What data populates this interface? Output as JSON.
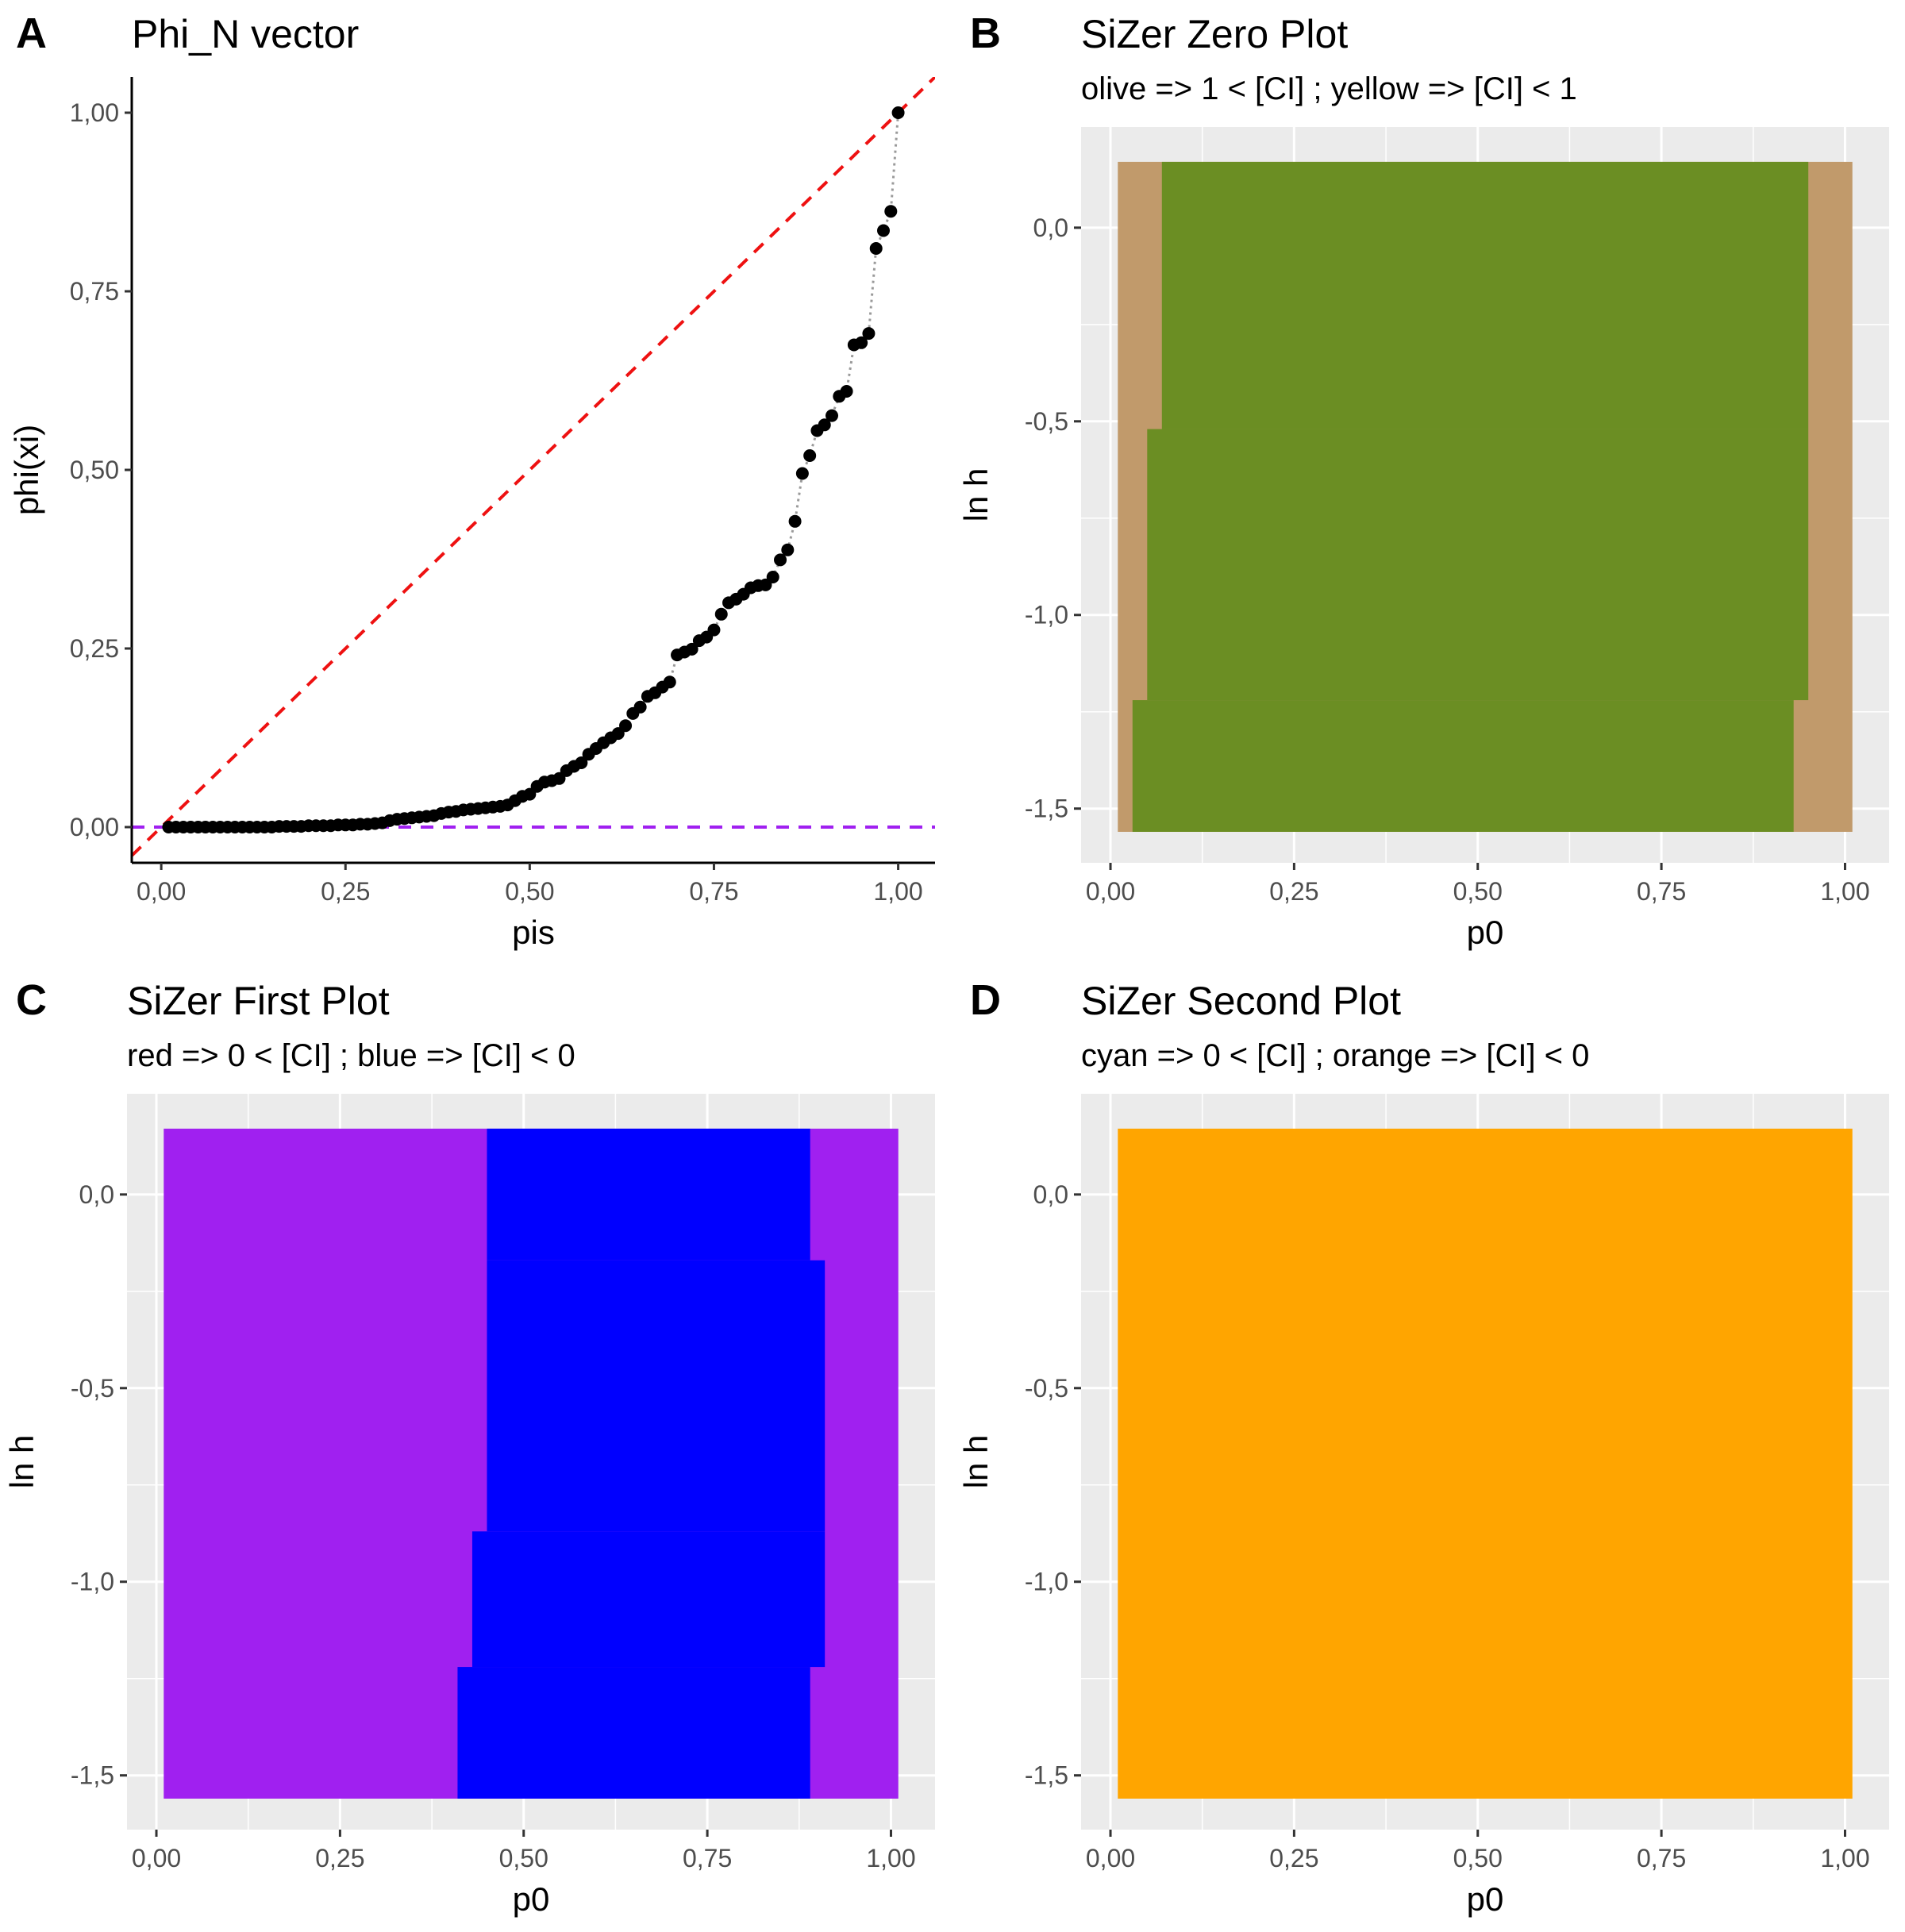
{
  "chart_data": [
    {
      "panel": "A",
      "type": "scatter",
      "title": "Phi_N vector",
      "xlabel": "pis",
      "ylabel": "phi(xi)",
      "xlim": [
        -0.04,
        1.05
      ],
      "ylim": [
        -0.05,
        1.05
      ],
      "x_ticks": [
        "0,00",
        "0,25",
        "0,50",
        "0,75",
        "1,00"
      ],
      "y_ticks": [
        "0,00",
        "0,25",
        "0,50",
        "0,75",
        "1,00"
      ],
      "grid": false,
      "reference_lines": [
        {
          "kind": "identity",
          "color": "#ee1111",
          "style": "dashed"
        },
        {
          "kind": "horizontal",
          "y": 0,
          "color": "#a020f0",
          "style": "dashed"
        }
      ],
      "series": [
        {
          "x": [
            0.01,
            0.02,
            0.03,
            0.04,
            0.05,
            0.06,
            0.07,
            0.08,
            0.09,
            0.1,
            0.11,
            0.12,
            0.13,
            0.14,
            0.15,
            0.16,
            0.17,
            0.18,
            0.19,
            0.2,
            0.21,
            0.22,
            0.23,
            0.24,
            0.25,
            0.26,
            0.27,
            0.28,
            0.29,
            0.3,
            0.31,
            0.32,
            0.33,
            0.34,
            0.35,
            0.36,
            0.37,
            0.38,
            0.39,
            0.4,
            0.41,
            0.42,
            0.43,
            0.44,
            0.45,
            0.46,
            0.47,
            0.48,
            0.49,
            0.5,
            0.51,
            0.52,
            0.53,
            0.54,
            0.55,
            0.56,
            0.57,
            0.58,
            0.59,
            0.6,
            0.61,
            0.62,
            0.63,
            0.64,
            0.65,
            0.66,
            0.67,
            0.68,
            0.69,
            0.7,
            0.71,
            0.72,
            0.73,
            0.74,
            0.75,
            0.76,
            0.77,
            0.78,
            0.79,
            0.8,
            0.81,
            0.82,
            0.83,
            0.84,
            0.85,
            0.86,
            0.87,
            0.88,
            0.89,
            0.9,
            0.91,
            0.92,
            0.93,
            0.94,
            0.95,
            0.96,
            0.97,
            0.98,
            0.99,
            1.0
          ],
          "y": [
            0.0,
            0.0,
            0.0,
            0.0,
            0.0,
            0.0,
            0.0,
            0.0,
            0.0,
            0.0,
            0.0,
            0.0,
            0.0,
            0.0,
            0.0,
            0.001,
            0.001,
            0.001,
            0.001,
            0.002,
            0.002,
            0.002,
            0.002,
            0.003,
            0.003,
            0.003,
            0.004,
            0.004,
            0.005,
            0.006,
            0.009,
            0.011,
            0.012,
            0.013,
            0.014,
            0.015,
            0.016,
            0.019,
            0.021,
            0.022,
            0.024,
            0.025,
            0.026,
            0.027,
            0.028,
            0.029,
            0.031,
            0.037,
            0.043,
            0.046,
            0.057,
            0.063,
            0.065,
            0.068,
            0.079,
            0.085,
            0.09,
            0.102,
            0.11,
            0.118,
            0.125,
            0.131,
            0.142,
            0.159,
            0.168,
            0.183,
            0.188,
            0.196,
            0.203,
            0.241,
            0.245,
            0.249,
            0.261,
            0.266,
            0.276,
            0.298,
            0.314,
            0.319,
            0.326,
            0.335,
            0.338,
            0.339,
            0.35,
            0.374,
            0.388,
            0.428,
            0.495,
            0.52,
            0.555,
            0.563,
            0.576,
            0.603,
            0.61,
            0.675,
            0.678,
            0.691,
            0.81,
            0.835,
            0.862,
            1.0
          ]
        }
      ]
    },
    {
      "panel": "B",
      "type": "heatmap",
      "title": "SiZer Zero Plot",
      "subtitle": "olive => 1 < [CI] ; yellow => [CI] < 1",
      "xlabel": "p0",
      "ylabel": "ln h",
      "xlim": [
        -0.04,
        1.06
      ],
      "ylim": [
        -1.64,
        0.26
      ],
      "x_ticks": [
        "0,00",
        "0,25",
        "0,50",
        "0,75",
        "1,00"
      ],
      "y_ticks": [
        "0,0",
        "-0,5",
        "-1,0",
        "-1,5"
      ],
      "background_color": "#c19a6b",
      "regions": [
        {
          "color": "#6b8e23",
          "ln_h_from": -1.56,
          "ln_h_to": -1.22,
          "p0_from": 0.03,
          "p0_to": 0.93
        },
        {
          "color": "#6b8e23",
          "ln_h_from": -1.22,
          "ln_h_to": -0.52,
          "p0_from": 0.05,
          "p0_to": 0.95
        },
        {
          "color": "#6b8e23",
          "ln_h_from": -0.52,
          "ln_h_to": 0.17,
          "p0_from": 0.07,
          "p0_to": 0.95
        }
      ]
    },
    {
      "panel": "C",
      "type": "heatmap",
      "title": "SiZer First Plot",
      "subtitle": "red => 0 < [CI] ; blue => [CI] < 0",
      "xlabel": "p0",
      "ylabel": "ln h",
      "xlim": [
        -0.04,
        1.06
      ],
      "ylim": [
        -1.64,
        0.26
      ],
      "x_ticks": [
        "0,00",
        "0,25",
        "0,50",
        "0,75",
        "1,00"
      ],
      "y_ticks": [
        "0,0",
        "-0,5",
        "-1,0",
        "-1,5"
      ],
      "background_color": "#a020f0",
      "regions": [
        {
          "color": "#0000ff",
          "ln_h_from": -1.56,
          "ln_h_to": -1.22,
          "p0_from": 0.41,
          "p0_to": 0.89
        },
        {
          "color": "#0000ff",
          "ln_h_from": -1.22,
          "ln_h_to": -0.87,
          "p0_from": 0.43,
          "p0_to": 0.91
        },
        {
          "color": "#0000ff",
          "ln_h_from": -0.87,
          "ln_h_to": -0.17,
          "p0_from": 0.45,
          "p0_to": 0.91
        },
        {
          "color": "#0000ff",
          "ln_h_from": -0.17,
          "ln_h_to": 0.17,
          "p0_from": 0.45,
          "p0_to": 0.89
        }
      ]
    },
    {
      "panel": "D",
      "type": "heatmap",
      "title": "SiZer Second Plot",
      "subtitle": "cyan => 0 < [CI] ; orange => [CI] < 0",
      "xlabel": "p0",
      "ylabel": "ln h",
      "xlim": [
        -0.04,
        1.06
      ],
      "ylim": [
        -1.64,
        0.26
      ],
      "x_ticks": [
        "0,00",
        "0,25",
        "0,50",
        "0,75",
        "1,00"
      ],
      "y_ticks": [
        "0,0",
        "-0,5",
        "-1,0",
        "-1,5"
      ],
      "background_color": "#ffa500",
      "regions": []
    }
  ]
}
